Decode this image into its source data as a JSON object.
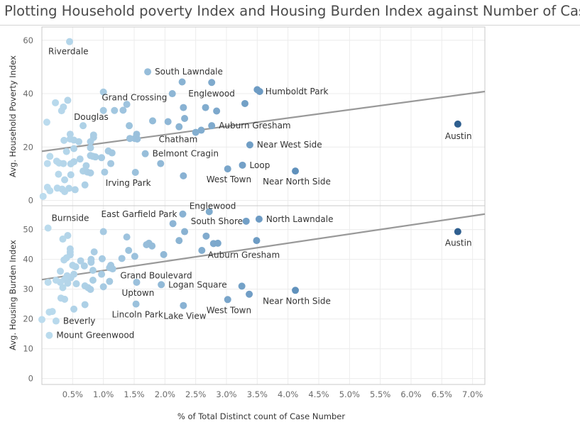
{
  "page_title": "Plotting Household poverty Index and Housing Burden Index against Number of Cases",
  "colors": {
    "point_light": "#bcdcee",
    "point_mid": "#6f9fc8",
    "point_dark": "#2f5f8f",
    "trend_line": "#999999",
    "gridline": "#ececec",
    "frame": "#c8c8c8"
  },
  "chart_data": [
    {
      "type": "scatter",
      "title": "",
      "xlabel": "% of Total Distinct count of Case Number",
      "ylabel": "Avg. Household Poverty Index",
      "x_unit": "%",
      "xlim": [
        0,
        7.2
      ],
      "ylim": [
        -2,
        65
      ],
      "x_ticks": [
        "0.5%",
        "1.0%",
        "1.5%",
        "2.0%",
        "2.5%",
        "3.0%",
        "3.5%",
        "4.0%",
        "4.5%",
        "5.0%",
        "5.5%",
        "6.0%",
        "6.5%",
        "7.0%"
      ],
      "y_ticks": [
        0,
        20,
        40,
        60
      ],
      "grid": true,
      "trend_line": {
        "x1": 0,
        "y1": 18.4,
        "x2": 7.2,
        "y2": 40.8
      },
      "points": [
        {
          "x": 0.45,
          "y": 59.5,
          "label": "Riverdale",
          "lx": -30,
          "ly": 18
        },
        {
          "x": 1.72,
          "y": 48.2,
          "label": "South Lawndale",
          "lx": 10,
          "ly": 4
        },
        {
          "x": 2.76,
          "y": 44.2,
          "label": "Englewood",
          "lx": -33,
          "ly": 20
        },
        {
          "x": 3.54,
          "y": 40.8,
          "label": "Humboldt Park",
          "lx": 8,
          "ly": 4
        },
        {
          "x": 2.3,
          "y": 34.8,
          "label": "Grand Crossing",
          "lx": -115,
          "ly": -10
        },
        {
          "x": 1.42,
          "y": 28.0,
          "label": "Douglas",
          "lx": -78,
          "ly": -8
        },
        {
          "x": 2.76,
          "y": 28.0,
          "label": "Auburn Gresham",
          "lx": 10,
          "ly": 4
        },
        {
          "x": 6.76,
          "y": 28.6,
          "label": "Austin",
          "lx": -18,
          "ly": 21
        },
        {
          "x": 2.5,
          "y": 25.5,
          "label": "Chatham",
          "lx": -52,
          "ly": 14
        },
        {
          "x": 3.38,
          "y": 20.8,
          "label": "Near West Side",
          "lx": 10,
          "ly": 4
        },
        {
          "x": 1.68,
          "y": 17.5,
          "label": "Belmont Cragin",
          "lx": 10,
          "ly": 4
        },
        {
          "x": 3.26,
          "y": 13.2,
          "label": "Loop",
          "lx": 10,
          "ly": 4
        },
        {
          "x": 3.02,
          "y": 11.8,
          "label": "West Town",
          "lx": -30,
          "ly": 19
        },
        {
          "x": 4.12,
          "y": 11.0,
          "label": "Near North Side",
          "lx": -46,
          "ly": 19
        },
        {
          "x": 1.52,
          "y": 10.5,
          "label": "Irving Park",
          "lx": -42,
          "ly": 19
        },
        {
          "x": 1.32,
          "y": 33.8
        },
        {
          "x": 1.0,
          "y": 40.6
        },
        {
          "x": 2.12,
          "y": 40.0
        },
        {
          "x": 2.28,
          "y": 44.4
        },
        {
          "x": 3.5,
          "y": 41.5
        },
        {
          "x": 3.3,
          "y": 36.3
        },
        {
          "x": 2.66,
          "y": 34.8
        },
        {
          "x": 2.84,
          "y": 33.5
        },
        {
          "x": 2.32,
          "y": 30.7
        },
        {
          "x": 2.05,
          "y": 29.5
        },
        {
          "x": 1.8,
          "y": 29.8
        },
        {
          "x": 2.59,
          "y": 26.3
        },
        {
          "x": 2.23,
          "y": 27.6
        },
        {
          "x": 1.54,
          "y": 24.8
        },
        {
          "x": 1.51,
          "y": 23.2
        },
        {
          "x": 1.43,
          "y": 23.2
        },
        {
          "x": 1.55,
          "y": 23.0
        },
        {
          "x": 1.93,
          "y": 13.8
        },
        {
          "x": 2.3,
          "y": 9.2
        },
        {
          "x": 1.38,
          "y": 36.0
        },
        {
          "x": 1.18,
          "y": 33.7
        },
        {
          "x": 1.0,
          "y": 33.7
        },
        {
          "x": 0.42,
          "y": 37.5
        },
        {
          "x": 0.22,
          "y": 36.6
        },
        {
          "x": 0.32,
          "y": 33.6
        },
        {
          "x": 0.35,
          "y": 35.0
        },
        {
          "x": 0.08,
          "y": 29.3
        },
        {
          "x": 0.67,
          "y": 28.0
        },
        {
          "x": 0.84,
          "y": 24.5
        },
        {
          "x": 0.84,
          "y": 23.6
        },
        {
          "x": 0.46,
          "y": 24.8
        },
        {
          "x": 0.46,
          "y": 23.0
        },
        {
          "x": 0.36,
          "y": 22.5
        },
        {
          "x": 0.52,
          "y": 22.6
        },
        {
          "x": 0.6,
          "y": 22.0
        },
        {
          "x": 0.79,
          "y": 22.0
        },
        {
          "x": 0.4,
          "y": 18.3
        },
        {
          "x": 0.79,
          "y": 19.7
        },
        {
          "x": 0.52,
          "y": 19.4
        },
        {
          "x": 1.08,
          "y": 18.5
        },
        {
          "x": 1.14,
          "y": 17.8
        },
        {
          "x": 0.83,
          "y": 16.5
        },
        {
          "x": 0.87,
          "y": 16.3
        },
        {
          "x": 0.97,
          "y": 16.0
        },
        {
          "x": 0.79,
          "y": 16.8
        },
        {
          "x": 0.62,
          "y": 15.5
        },
        {
          "x": 0.52,
          "y": 14.5
        },
        {
          "x": 0.13,
          "y": 16.5
        },
        {
          "x": 0.24,
          "y": 14.7
        },
        {
          "x": 0.28,
          "y": 14.0
        },
        {
          "x": 0.47,
          "y": 13.7
        },
        {
          "x": 0.35,
          "y": 13.8
        },
        {
          "x": 0.72,
          "y": 13.0
        },
        {
          "x": 0.09,
          "y": 13.8
        },
        {
          "x": 1.12,
          "y": 13.8
        },
        {
          "x": 0.67,
          "y": 11.0
        },
        {
          "x": 0.74,
          "y": 10.6
        },
        {
          "x": 0.79,
          "y": 10.3
        },
        {
          "x": 1.02,
          "y": 10.6
        },
        {
          "x": 0.47,
          "y": 9.6
        },
        {
          "x": 0.27,
          "y": 9.8
        },
        {
          "x": 0.37,
          "y": 7.7
        },
        {
          "x": 0.7,
          "y": 5.8
        },
        {
          "x": 0.09,
          "y": 4.9
        },
        {
          "x": 0.13,
          "y": 3.6
        },
        {
          "x": 0.25,
          "y": 4.6
        },
        {
          "x": 0.33,
          "y": 4.2
        },
        {
          "x": 0.44,
          "y": 4.5
        },
        {
          "x": 0.54,
          "y": 4.0
        },
        {
          "x": 0.37,
          "y": 3.3
        },
        {
          "x": 0.02,
          "y": 1.5
        }
      ]
    },
    {
      "type": "scatter",
      "title": "",
      "xlabel": "% of Total Distinct count of Case Number",
      "ylabel": "Avg. Housing Burden Index",
      "x_unit": "%",
      "xlim": [
        0,
        7.2
      ],
      "ylim": [
        -2,
        58
      ],
      "x_ticks": [
        "0.5%",
        "1.0%",
        "1.5%",
        "2.0%",
        "2.5%",
        "3.0%",
        "3.5%",
        "4.0%",
        "4.5%",
        "5.0%",
        "5.5%",
        "6.0%",
        "6.5%",
        "7.0%"
      ],
      "y_ticks": [
        0,
        10,
        20,
        30,
        40,
        50
      ],
      "grid": true,
      "trend_line": {
        "x1": 0,
        "y1": 33.2,
        "x2": 7.2,
        "y2": 55.2
      },
      "points": [
        {
          "x": 2.72,
          "y": 56.0,
          "label": "Englewood",
          "lx": -28,
          "ly": -4
        },
        {
          "x": 2.29,
          "y": 55.2,
          "label": "East Garfield Park",
          "lx": -115,
          "ly": 4
        },
        {
          "x": 3.53,
          "y": 53.5,
          "label": "North Lawndale",
          "lx": 10,
          "ly": 4
        },
        {
          "x": 3.32,
          "y": 52.8,
          "label": "South Shore",
          "lx": -78,
          "ly": 4
        },
        {
          "x": 0.1,
          "y": 50.5,
          "label": "Burnside",
          "lx": 5,
          "ly": -10
        },
        {
          "x": 6.76,
          "y": 49.3,
          "label": "Austin",
          "lx": -18,
          "ly": 20
        },
        {
          "x": 2.79,
          "y": 45.3,
          "label": "Auburn Gresham",
          "lx": -8,
          "ly": 20
        },
        {
          "x": 1.1,
          "y": 37.2,
          "label": "Grand Boulevard",
          "lx": 15,
          "ly": 15
        },
        {
          "x": 1.54,
          "y": 32.3,
          "label": "Uptown",
          "lx": -21,
          "ly": 19
        },
        {
          "x": 1.94,
          "y": 31.5,
          "label": "Logan Square",
          "lx": 10,
          "ly": 4
        },
        {
          "x": 4.12,
          "y": 29.6,
          "label": "Near North Side",
          "lx": -46,
          "ly": 19
        },
        {
          "x": 3.02,
          "y": 26.5,
          "label": "West Town",
          "lx": -30,
          "ly": 19
        },
        {
          "x": 1.53,
          "y": 25.0,
          "label": "Lincoln Park",
          "lx": -34,
          "ly": 19
        },
        {
          "x": 2.3,
          "y": 24.5,
          "label": "Lake View",
          "lx": -28,
          "ly": 19
        },
        {
          "x": 0.23,
          "y": 19.3,
          "label": "Beverly",
          "lx": 10,
          "ly": 4
        },
        {
          "x": 0.12,
          "y": 14.5,
          "label": "Mount Greenwood",
          "lx": 10,
          "ly": 4
        },
        {
          "x": 2.13,
          "y": 52.0
        },
        {
          "x": 2.32,
          "y": 49.3
        },
        {
          "x": 2.23,
          "y": 46.3
        },
        {
          "x": 2.67,
          "y": 47.8
        },
        {
          "x": 2.86,
          "y": 45.4
        },
        {
          "x": 2.6,
          "y": 43.0
        },
        {
          "x": 3.49,
          "y": 46.3
        },
        {
          "x": 3.25,
          "y": 31.0
        },
        {
          "x": 3.37,
          "y": 28.3
        },
        {
          "x": 1.74,
          "y": 45.4
        },
        {
          "x": 1.7,
          "y": 44.9
        },
        {
          "x": 1.79,
          "y": 44.5
        },
        {
          "x": 1.41,
          "y": 43.0
        },
        {
          "x": 1.51,
          "y": 41.0
        },
        {
          "x": 1.3,
          "y": 40.3
        },
        {
          "x": 1.98,
          "y": 41.6
        },
        {
          "x": 1.38,
          "y": 47.5
        },
        {
          "x": 1.0,
          "y": 49.3
        },
        {
          "x": 1.12,
          "y": 38.0
        },
        {
          "x": 1.15,
          "y": 36.8
        },
        {
          "x": 1.1,
          "y": 32.6
        },
        {
          "x": 1.0,
          "y": 30.8
        },
        {
          "x": 0.85,
          "y": 42.5
        },
        {
          "x": 0.97,
          "y": 35.0
        },
        {
          "x": 0.98,
          "y": 40.2
        },
        {
          "x": 0.8,
          "y": 40.0
        },
        {
          "x": 0.8,
          "y": 39.0
        },
        {
          "x": 0.83,
          "y": 36.3
        },
        {
          "x": 0.69,
          "y": 37.8
        },
        {
          "x": 0.63,
          "y": 39.5
        },
        {
          "x": 0.55,
          "y": 37.5
        },
        {
          "x": 0.5,
          "y": 38.0
        },
        {
          "x": 0.46,
          "y": 43.5
        },
        {
          "x": 0.46,
          "y": 42.5
        },
        {
          "x": 0.46,
          "y": 41.5
        },
        {
          "x": 0.4,
          "y": 40.5
        },
        {
          "x": 0.36,
          "y": 39.8
        },
        {
          "x": 0.3,
          "y": 36.0
        },
        {
          "x": 0.42,
          "y": 48.0
        },
        {
          "x": 0.34,
          "y": 46.8
        },
        {
          "x": 0.52,
          "y": 35.0
        },
        {
          "x": 0.47,
          "y": 33.8
        },
        {
          "x": 0.41,
          "y": 34.5
        },
        {
          "x": 0.37,
          "y": 33.3
        },
        {
          "x": 0.3,
          "y": 32.3
        },
        {
          "x": 0.23,
          "y": 33.0
        },
        {
          "x": 0.1,
          "y": 32.3
        },
        {
          "x": 0.42,
          "y": 32.0
        },
        {
          "x": 0.56,
          "y": 31.8
        },
        {
          "x": 0.83,
          "y": 33.0
        },
        {
          "x": 0.7,
          "y": 31.1
        },
        {
          "x": 0.75,
          "y": 30.5
        },
        {
          "x": 0.79,
          "y": 29.9
        },
        {
          "x": 0.34,
          "y": 30.5
        },
        {
          "x": 0.31,
          "y": 27.0
        },
        {
          "x": 0.37,
          "y": 26.6
        },
        {
          "x": 0.7,
          "y": 24.8
        },
        {
          "x": 0.52,
          "y": 23.3
        },
        {
          "x": 0.12,
          "y": 22.3
        },
        {
          "x": 0.17,
          "y": 22.5
        },
        {
          "x": 0.0,
          "y": 19.8
        }
      ]
    }
  ]
}
